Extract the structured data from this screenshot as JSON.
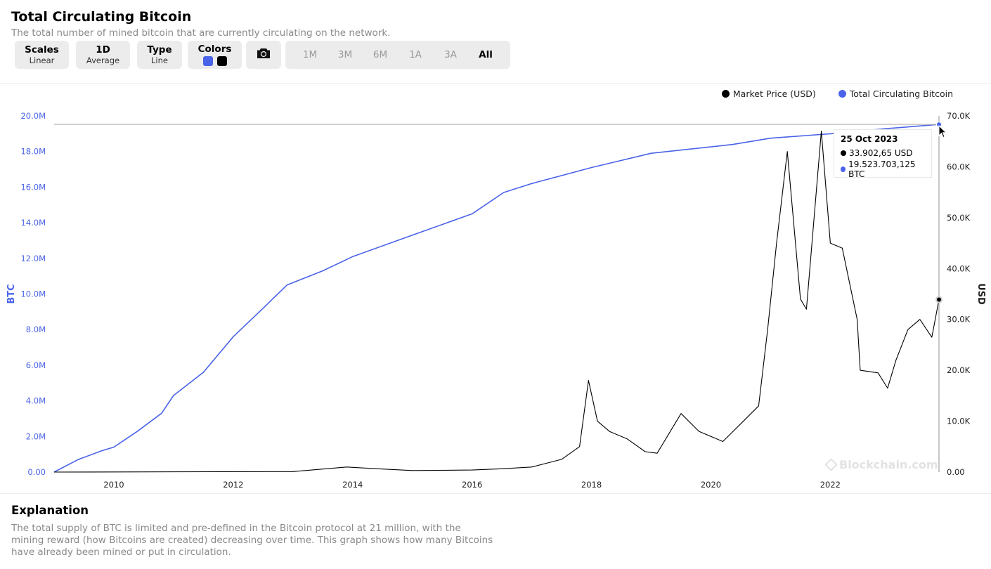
{
  "header": {
    "title": "Total Circulating Bitcoin",
    "subtitle": "The total number of mined bitcoin that are currently circulating on the network."
  },
  "controls": {
    "scales": {
      "label": "Scales",
      "value": "Linear"
    },
    "average": {
      "label": "1D",
      "value": "Average"
    },
    "type": {
      "label": "Type",
      "value": "Line"
    },
    "colors": {
      "label": "Colors",
      "swatches": [
        "#4a63e8",
        "#000000"
      ]
    },
    "screenshot_icon": "camera-icon",
    "ranges": [
      "1M",
      "3M",
      "6M",
      "1A",
      "3A",
      "All"
    ],
    "active_range": "All"
  },
  "legend": [
    {
      "label": "Market Price (USD)",
      "color": "#000000"
    },
    {
      "label": "Total Circulating Bitcoin",
      "color": "#4a63e8"
    }
  ],
  "tooltip": {
    "date": "25 Oct 2023",
    "price": "33.902,65 USD",
    "btc": "19.523.703,125 BTC"
  },
  "watermark": "Blockchain.com",
  "explanation": {
    "title": "Explanation",
    "text": "The total supply of BTC is limited and pre-defined in the Bitcoin protocol at 21 million, with the mining reward (how Bitcoins are created) decreasing over time. This graph shows how many Bitcoins have already been mined or put in circulation."
  },
  "chart_data": {
    "type": "line",
    "y_left_label": "BTC",
    "y_right_label": "USD",
    "y_left_ticks": [
      "0.00",
      "2.0M",
      "4.0M",
      "6.0M",
      "8.0M",
      "10.0M",
      "12.0M",
      "14.0M",
      "16.0M",
      "18.0M",
      "20.0M"
    ],
    "y_right_ticks": [
      "0.00",
      "10.0K",
      "20.0K",
      "30.0K",
      "40.0K",
      "50.0K",
      "60.0K",
      "70.0K"
    ],
    "x_ticks": [
      "2010",
      "2012",
      "2014",
      "2016",
      "2018",
      "2020",
      "2022"
    ],
    "xlim": [
      2009.0,
      2023.82
    ],
    "y_left_lim": [
      0,
      20000000
    ],
    "y_right_lim": [
      0,
      70000
    ],
    "colors": {
      "btc": "#4a63e8",
      "price": "#000000",
      "left_axis": "#4a63e8"
    },
    "series": [
      {
        "name": "Total Circulating Bitcoin",
        "axis": "left",
        "points": [
          [
            2009.0,
            0
          ],
          [
            2009.4,
            700000
          ],
          [
            2009.8,
            1200000
          ],
          [
            2010.0,
            1400000
          ],
          [
            2010.4,
            2300000
          ],
          [
            2010.8,
            3300000
          ],
          [
            2011.0,
            4300000
          ],
          [
            2011.5,
            5600000
          ],
          [
            2012.0,
            7600000
          ],
          [
            2012.5,
            9200000
          ],
          [
            2012.9,
            10500000
          ],
          [
            2013.5,
            11300000
          ],
          [
            2014.0,
            12100000
          ],
          [
            2015.0,
            13300000
          ],
          [
            2016.0,
            14500000
          ],
          [
            2016.53,
            15700000
          ],
          [
            2017.0,
            16200000
          ],
          [
            2018.0,
            17100000
          ],
          [
            2019.0,
            17900000
          ],
          [
            2020.37,
            18400000
          ],
          [
            2021.0,
            18750000
          ],
          [
            2022.0,
            19000000
          ],
          [
            2023.0,
            19300000
          ],
          [
            2023.82,
            19523703
          ]
        ]
      },
      {
        "name": "Market Price (USD)",
        "axis": "right",
        "points": [
          [
            2009.0,
            0
          ],
          [
            2013.0,
            100
          ],
          [
            2013.9,
            1000
          ],
          [
            2014.5,
            600
          ],
          [
            2015.0,
            300
          ],
          [
            2016.0,
            400
          ],
          [
            2016.5,
            650
          ],
          [
            2017.0,
            1000
          ],
          [
            2017.5,
            2500
          ],
          [
            2017.8,
            5000
          ],
          [
            2017.95,
            18000
          ],
          [
            2018.1,
            10000
          ],
          [
            2018.3,
            8000
          ],
          [
            2018.6,
            6500
          ],
          [
            2018.9,
            4000
          ],
          [
            2019.1,
            3700
          ],
          [
            2019.5,
            11500
          ],
          [
            2019.8,
            8000
          ],
          [
            2020.2,
            6000
          ],
          [
            2020.5,
            9500
          ],
          [
            2020.8,
            13000
          ],
          [
            2020.95,
            28000
          ],
          [
            2021.1,
            45000
          ],
          [
            2021.28,
            63000
          ],
          [
            2021.5,
            34000
          ],
          [
            2021.6,
            32000
          ],
          [
            2021.85,
            67000
          ],
          [
            2022.0,
            45000
          ],
          [
            2022.2,
            44000
          ],
          [
            2022.45,
            30000
          ],
          [
            2022.5,
            20000
          ],
          [
            2022.8,
            19500
          ],
          [
            2022.96,
            16500
          ],
          [
            2023.1,
            22000
          ],
          [
            2023.3,
            28000
          ],
          [
            2023.5,
            30000
          ],
          [
            2023.7,
            26500
          ],
          [
            2023.82,
            33902.65
          ]
        ]
      }
    ],
    "hover_date": 2023.82
  }
}
